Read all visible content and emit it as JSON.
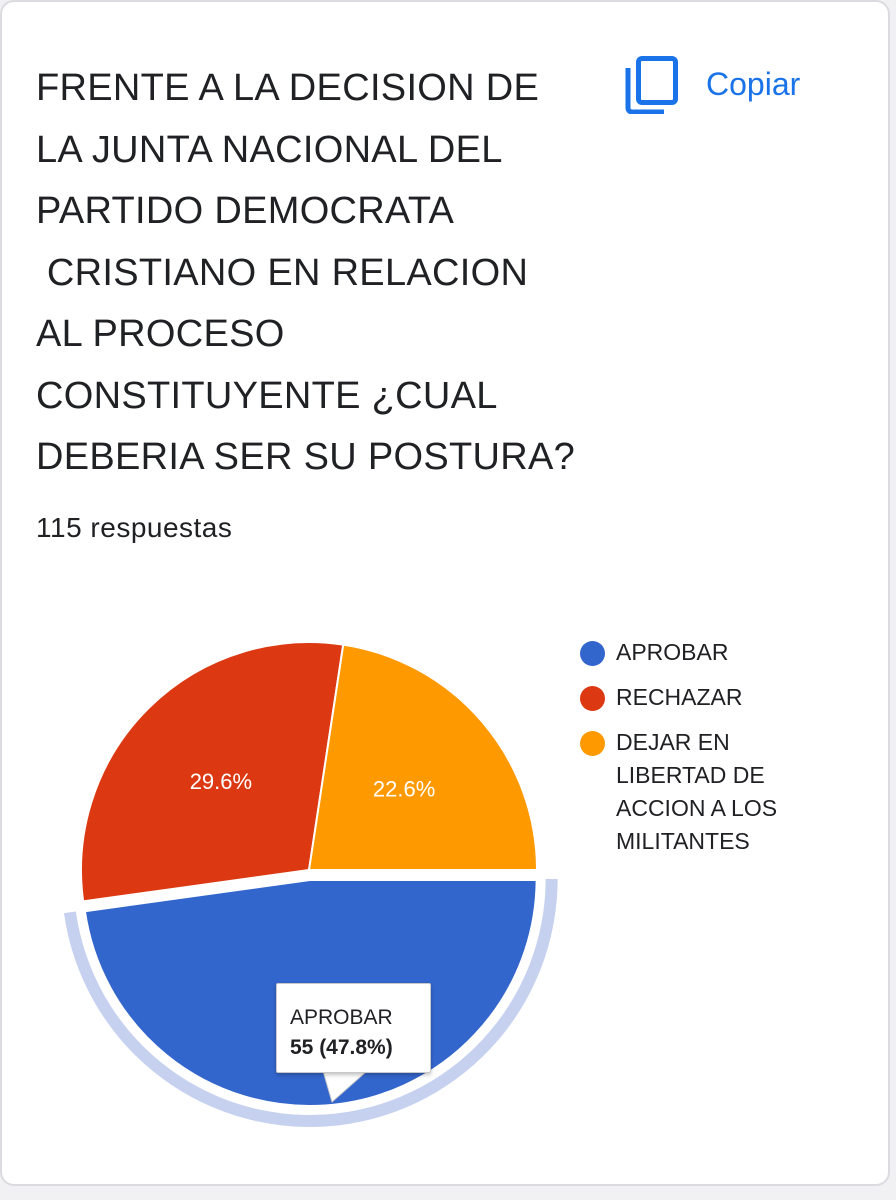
{
  "question": {
    "lines": [
      "FRENTE A LA DECISION DE",
      "LA JUNTA NACIONAL DEL",
      "PARTIDO DEMOCRATA",
      " CRISTIANO EN RELACION",
      "AL PROCESO",
      "CONSTITUYENTE ¿CUAL",
      "DEBERIA SER SU POSTURA?"
    ]
  },
  "copy_button": {
    "label": "Copiar",
    "icon": "copy-icon",
    "color": "#1a73e8"
  },
  "responses_label": "115 respuestas",
  "chart_data": {
    "type": "pie",
    "total": 115,
    "slices": [
      {
        "label": "APROBAR",
        "count": 55,
        "percent": 47.8,
        "percent_label": "",
        "color": "#3366cc",
        "highlighted": true
      },
      {
        "label": "RECHAZAR",
        "count": 34,
        "percent": 29.6,
        "percent_label": "29.6%",
        "color": "#dc3912",
        "highlighted": false
      },
      {
        "label": "DEJAR EN LIBERTAD DE ACCION A LOS MILITANTES",
        "count": 26,
        "percent": 22.6,
        "percent_label": "22.6%",
        "color": "#ff9900",
        "highlighted": false
      }
    ],
    "legend": {
      "position": "right",
      "items": [
        {
          "lines": [
            "APROBAR"
          ],
          "color": "#3366cc"
        },
        {
          "lines": [
            "RECHAZAR"
          ],
          "color": "#dc3912"
        },
        {
          "lines": [
            "DEJAR EN",
            "LIBERTAD DE",
            "ACCION A LOS",
            "MILITANTES"
          ],
          "color": "#ff9900"
        }
      ]
    },
    "tooltip": {
      "title": "APROBAR",
      "value": "55 (47.8%)"
    }
  }
}
